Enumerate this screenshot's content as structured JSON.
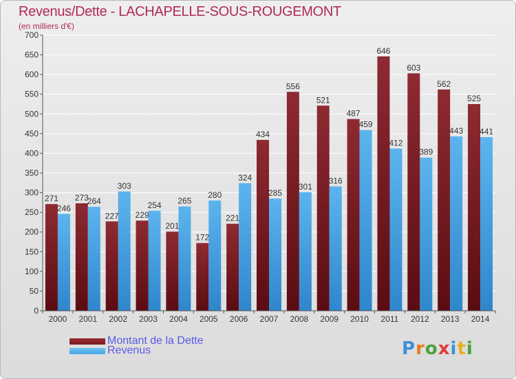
{
  "header": {
    "title": "Revenus/Dette - LACHAPELLE-SOUS-ROUGEMONT",
    "subtitle": "(en milliers d'€)"
  },
  "legend": {
    "items": [
      {
        "label": "Montant de la Dette",
        "color": "#7a1a22"
      },
      {
        "label": "Revenus",
        "color": "#4aa6e6"
      }
    ]
  },
  "logo": {
    "text": "Proxiti",
    "colors": [
      "#3d8fd6",
      "#e87a1c",
      "#4aa03c",
      "#e23a3a",
      "#3d8fd6",
      "#e8b01c",
      "#4aa03c"
    ]
  },
  "chart_data": {
    "type": "bar",
    "categories": [
      "2000",
      "2001",
      "2002",
      "2003",
      "2004",
      "2005",
      "2006",
      "2007",
      "2008",
      "2009",
      "2010",
      "2011",
      "2012",
      "2013",
      "2014"
    ],
    "series": [
      {
        "name": "Montant de la Dette",
        "color": "#7a1a22",
        "values": [
          271,
          273,
          227,
          229,
          201,
          172,
          221,
          434,
          556,
          521,
          487,
          646,
          603,
          562,
          525
        ]
      },
      {
        "name": "Revenus",
        "color": "#4aa6e6",
        "values": [
          246,
          264,
          303,
          254,
          265,
          280,
          324,
          285,
          301,
          316,
          459,
          412,
          389,
          443,
          441
        ]
      }
    ],
    "ylim": [
      0,
      700
    ],
    "yticks": [
      0,
      50,
      100,
      150,
      200,
      250,
      300,
      350,
      400,
      450,
      500,
      550,
      600,
      650,
      700
    ],
    "grid": true
  }
}
